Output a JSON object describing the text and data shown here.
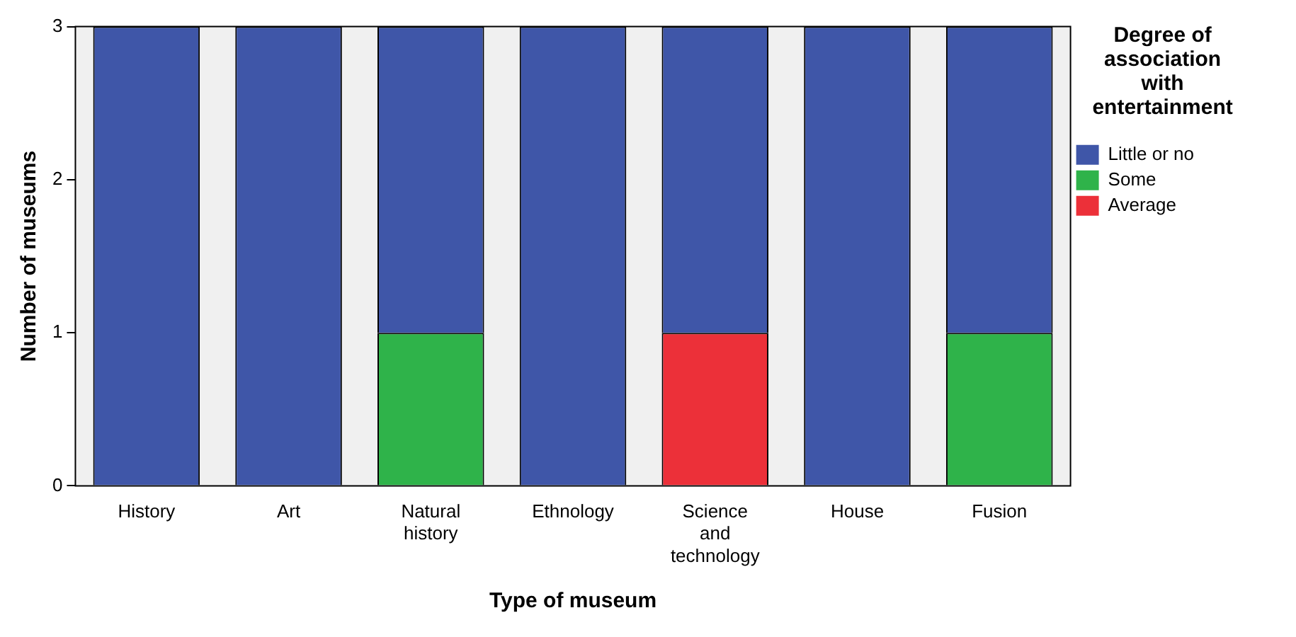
{
  "chart_data": {
    "type": "bar",
    "stacked": true,
    "xlabel": "Type of museum",
    "ylabel": "Number of museums",
    "legend_title": "Degree of association with entertainment",
    "legend": "right",
    "grid": false,
    "categories": [
      "History",
      "Art",
      "Natural history",
      "Ethnology",
      "Science and technology",
      "House",
      "Fusion"
    ],
    "ylim": [
      0,
      3
    ],
    "yticks": [
      0,
      1,
      2,
      3
    ],
    "series": [
      {
        "name": "Average",
        "color": "#ec3039",
        "values": [
          null,
          null,
          null,
          null,
          1,
          null,
          null
        ]
      },
      {
        "name": "Some",
        "color": "#2fb34a",
        "values": [
          null,
          null,
          1,
          null,
          null,
          null,
          1
        ]
      },
      {
        "name": "Little or no",
        "color": "#3f56a8",
        "values": [
          3,
          3,
          2,
          3,
          2,
          3,
          2
        ]
      }
    ]
  }
}
